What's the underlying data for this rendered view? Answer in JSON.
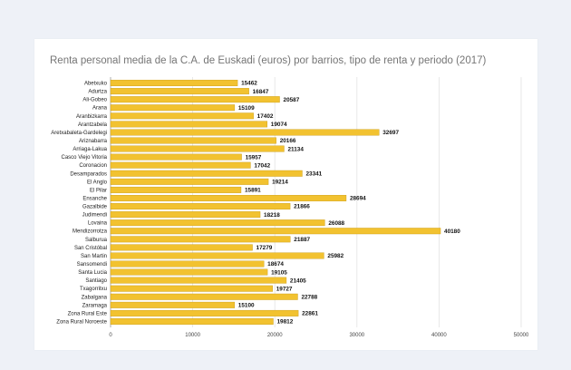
{
  "chart_data": {
    "type": "bar",
    "orientation": "horizontal",
    "title": "Renta personal media de la C.A. de Euskadi (euros) por barrios, tipo de renta y periodo (2017)",
    "xlim": [
      0,
      50000
    ],
    "x_ticks": [
      "0",
      "10000",
      "20000",
      "30000",
      "40000",
      "50000"
    ],
    "grid": true,
    "bar_color": "#f2c230",
    "categories": [
      "Abetxuko",
      "Adurtza",
      "Ali-Gobeo",
      "Arana",
      "Aranbizkarra",
      "Arantzabela",
      "Aretxabaleta-Gardelegi",
      "Ariznabarra",
      "Arriaga-Lakua",
      "Casco Viejo Vitoria",
      "Coronacion",
      "Desamparados",
      "El Anglo",
      "El Pilar",
      "Ensanche",
      "Gazalbide",
      "Judimendi",
      "Lovaina",
      "Mendizorrotza",
      "Salburua",
      "San Cristóbal",
      "San Martin",
      "Sansomendi",
      "Santa Lucia",
      "Santiago",
      "Txagorritxu",
      "Zabalgana",
      "Zaramaga",
      "Zona Rural Este",
      "Zona Rural Noroeste"
    ],
    "values": [
      15462,
      16847,
      20587,
      15109,
      17402,
      19074,
      32697,
      20166,
      21134,
      15957,
      17042,
      23341,
      19214,
      15891,
      28694,
      21866,
      18218,
      26088,
      40180,
      21887,
      17279,
      25982,
      18674,
      19105,
      21405,
      19727,
      22788,
      15100,
      22861,
      19812
    ]
  }
}
